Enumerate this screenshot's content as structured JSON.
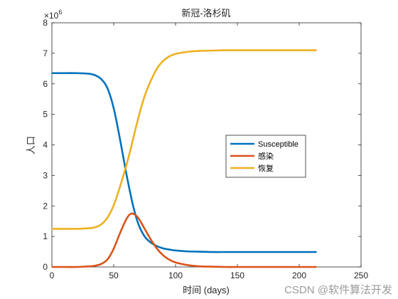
{
  "chart_data": {
    "type": "line",
    "title": "新冠-洛杉矶",
    "xlabel": "时间 (days)",
    "ylabel": "人口",
    "y_multiplier_base": "×10",
    "y_multiplier_exp": "6",
    "xlim": [
      0,
      250
    ],
    "ylim": [
      0,
      8
    ],
    "y_scale": 1000000,
    "xticks": [
      0,
      50,
      100,
      150,
      200,
      250
    ],
    "yticks": [
      0,
      1,
      2,
      3,
      4,
      5,
      6,
      7,
      8
    ],
    "grid": false,
    "legend_position": "center-right",
    "x": [
      0,
      10,
      20,
      30,
      35,
      40,
      45,
      50,
      55,
      60,
      63,
      66,
      70,
      75,
      80,
      85,
      90,
      95,
      100,
      110,
      120,
      130,
      140,
      150,
      170,
      190,
      214
    ],
    "series": [
      {
        "name": "Susceptible",
        "color": "#0072BD",
        "values": [
          6.35,
          6.35,
          6.35,
          6.33,
          6.28,
          6.15,
          5.85,
          5.2,
          4.2,
          3.1,
          2.5,
          1.95,
          1.4,
          1.0,
          0.8,
          0.68,
          0.61,
          0.57,
          0.54,
          0.51,
          0.5,
          0.49,
          0.49,
          0.49,
          0.49,
          0.49,
          0.49
        ]
      },
      {
        "name": "感染",
        "color": "#D95319",
        "values": [
          0.0,
          0.0,
          0.0,
          0.02,
          0.04,
          0.1,
          0.25,
          0.6,
          1.1,
          1.55,
          1.72,
          1.74,
          1.6,
          1.25,
          0.9,
          0.6,
          0.38,
          0.24,
          0.15,
          0.06,
          0.02,
          0.01,
          0.0,
          0.0,
          0.0,
          0.0,
          0.0
        ]
      },
      {
        "name": "恢复",
        "color": "#EDB120",
        "values": [
          1.25,
          1.25,
          1.25,
          1.27,
          1.3,
          1.4,
          1.62,
          2.02,
          2.62,
          3.3,
          3.75,
          4.25,
          4.9,
          5.6,
          6.1,
          6.5,
          6.75,
          6.9,
          6.98,
          7.05,
          7.08,
          7.09,
          7.1,
          7.1,
          7.1,
          7.1,
          7.1
        ]
      }
    ]
  },
  "watermark": "CSDN @软件算法开发"
}
